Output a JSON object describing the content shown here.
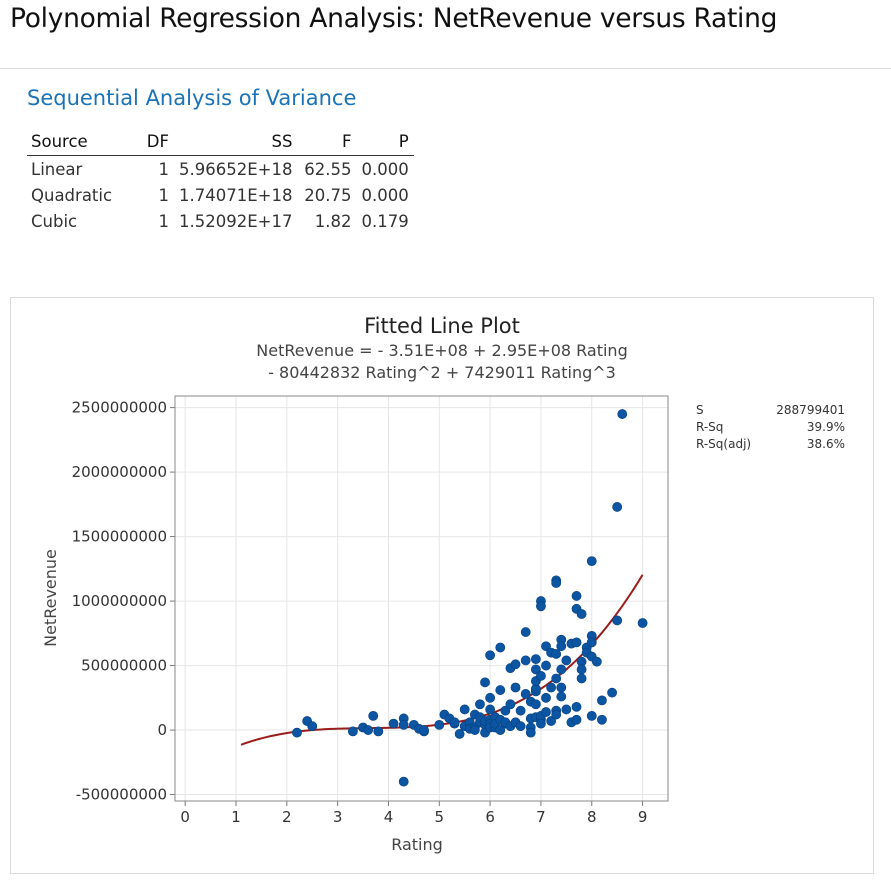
{
  "page": {
    "title": "Polynomial Regression Analysis: NetRevenue versus Rating"
  },
  "anova": {
    "section_title": "Sequential Analysis of Variance",
    "headers": [
      "Source",
      "DF",
      "SS",
      "F",
      "P"
    ],
    "rows": [
      {
        "source": "Linear",
        "df": "1",
        "ss": "5.96652E+18",
        "f": "62.55",
        "p": "0.000"
      },
      {
        "source": "Quadratic",
        "df": "1",
        "ss": "1.74071E+18",
        "f": "20.75",
        "p": "0.000"
      },
      {
        "source": "Cubic",
        "df": "1",
        "ss": "1.52092E+17",
        "f": "1.82",
        "p": "0.179"
      }
    ]
  },
  "stats": {
    "s_label": "S",
    "s_value": "288799401",
    "rsq_label": "R-Sq",
    "rsq_value": "39.9%",
    "rsqadj_label": "R-Sq(adj)",
    "rsqadj_value": "38.6%"
  },
  "colors": {
    "points": "#0b55a3",
    "fit_line": "#9b1c1c",
    "section_title": "#1a73b6"
  },
  "chart_data": {
    "type": "scatter",
    "title": "Fitted Line Plot",
    "subtitle_lines": [
      "NetRevenue = - 3.51E+08 + 2.95E+08 Rating",
      "- 80442832 Rating^2 + 7429011 Rating^3"
    ],
    "xlabel": "Rating",
    "ylabel": "NetRevenue",
    "xlim": [
      -0.2,
      9.5
    ],
    "ylim": [
      -550000000,
      2590000000
    ],
    "x_ticks": [
      0,
      1,
      2,
      3,
      4,
      5,
      6,
      7,
      8,
      9
    ],
    "y_ticks": [
      -500000000,
      0,
      500000000,
      1000000000,
      1500000000,
      2000000000,
      2500000000
    ],
    "y_tick_labels": [
      "-500000000",
      "0",
      "500000000",
      "1000000000",
      "1500000000",
      "2000000000",
      "2500000000"
    ],
    "grid": true,
    "fit": {
      "coefficients": [
        -351000000,
        295000000,
        -80442832,
        7429011
      ],
      "x_range": [
        1.1,
        9.0
      ]
    },
    "points": [
      [
        2.2,
        -20000000
      ],
      [
        2.4,
        70000000
      ],
      [
        2.5,
        30000000
      ],
      [
        3.3,
        -10000000
      ],
      [
        3.5,
        20000000
      ],
      [
        3.6,
        0
      ],
      [
        3.7,
        110000000
      ],
      [
        3.8,
        -10000000
      ],
      [
        4.1,
        50000000
      ],
      [
        4.3,
        90000000
      ],
      [
        4.3,
        40000000
      ],
      [
        4.3,
        -400000000
      ],
      [
        4.5,
        40000000
      ],
      [
        4.6,
        10000000
      ],
      [
        4.7,
        -10000000
      ],
      [
        4.7,
        0
      ],
      [
        5.0,
        40000000
      ],
      [
        5.1,
        120000000
      ],
      [
        5.2,
        90000000
      ],
      [
        5.3,
        50000000
      ],
      [
        5.3,
        60000000
      ],
      [
        5.4,
        -30000000
      ],
      [
        5.5,
        30000000
      ],
      [
        5.5,
        160000000
      ],
      [
        5.6,
        60000000
      ],
      [
        5.6,
        10000000
      ],
      [
        5.7,
        20000000
      ],
      [
        5.7,
        120000000
      ],
      [
        5.7,
        0
      ],
      [
        5.8,
        60000000
      ],
      [
        5.8,
        100000000
      ],
      [
        5.8,
        200000000
      ],
      [
        5.9,
        40000000
      ],
      [
        5.9,
        370000000
      ],
      [
        5.9,
        70000000
      ],
      [
        5.9,
        -20000000
      ],
      [
        6.0,
        580000000
      ],
      [
        6.0,
        250000000
      ],
      [
        6.0,
        160000000
      ],
      [
        6.0,
        80000000
      ],
      [
        6.0,
        50000000
      ],
      [
        6.0,
        20000000
      ],
      [
        6.1,
        100000000
      ],
      [
        6.1,
        20000000
      ],
      [
        6.1,
        50000000
      ],
      [
        6.2,
        640000000
      ],
      [
        6.2,
        310000000
      ],
      [
        6.2,
        0
      ],
      [
        6.2,
        80000000
      ],
      [
        6.3,
        150000000
      ],
      [
        6.3,
        50000000
      ],
      [
        6.3,
        60000000
      ],
      [
        6.4,
        200000000
      ],
      [
        6.4,
        30000000
      ],
      [
        6.4,
        480000000
      ],
      [
        6.5,
        510000000
      ],
      [
        6.5,
        330000000
      ],
      [
        6.5,
        60000000
      ],
      [
        6.6,
        150000000
      ],
      [
        6.6,
        30000000
      ],
      [
        6.7,
        760000000
      ],
      [
        6.7,
        540000000
      ],
      [
        6.7,
        280000000
      ],
      [
        6.8,
        90000000
      ],
      [
        6.8,
        20000000
      ],
      [
        6.8,
        220000000
      ],
      [
        6.8,
        -20000000
      ],
      [
        6.9,
        470000000
      ],
      [
        6.9,
        300000000
      ],
      [
        6.9,
        200000000
      ],
      [
        6.9,
        320000000
      ],
      [
        6.9,
        550000000
      ],
      [
        6.9,
        100000000
      ],
      [
        6.9,
        380000000
      ],
      [
        7.0,
        1000000000
      ],
      [
        7.0,
        960000000
      ],
      [
        7.0,
        420000000
      ],
      [
        7.0,
        80000000
      ],
      [
        7.0,
        110000000
      ],
      [
        7.0,
        50000000
      ],
      [
        7.1,
        500000000
      ],
      [
        7.1,
        250000000
      ],
      [
        7.1,
        650000000
      ],
      [
        7.1,
        140000000
      ],
      [
        7.2,
        600000000
      ],
      [
        7.2,
        330000000
      ],
      [
        7.2,
        70000000
      ],
      [
        7.3,
        1160000000
      ],
      [
        7.3,
        1140000000
      ],
      [
        7.3,
        590000000
      ],
      [
        7.3,
        400000000
      ],
      [
        7.3,
        150000000
      ],
      [
        7.3,
        120000000
      ],
      [
        7.4,
        700000000
      ],
      [
        7.4,
        650000000
      ],
      [
        7.4,
        470000000
      ],
      [
        7.4,
        330000000
      ],
      [
        7.4,
        260000000
      ],
      [
        7.5,
        540000000
      ],
      [
        7.5,
        160000000
      ],
      [
        7.6,
        670000000
      ],
      [
        7.6,
        60000000
      ],
      [
        7.7,
        1040000000
      ],
      [
        7.7,
        940000000
      ],
      [
        7.7,
        680000000
      ],
      [
        7.7,
        180000000
      ],
      [
        7.7,
        80000000
      ],
      [
        7.8,
        900000000
      ],
      [
        7.8,
        530000000
      ],
      [
        7.8,
        470000000
      ],
      [
        7.8,
        400000000
      ],
      [
        7.9,
        640000000
      ],
      [
        7.9,
        600000000
      ],
      [
        8.0,
        1310000000
      ],
      [
        8.0,
        730000000
      ],
      [
        8.0,
        680000000
      ],
      [
        8.0,
        570000000
      ],
      [
        8.0,
        110000000
      ],
      [
        8.1,
        530000000
      ],
      [
        8.2,
        230000000
      ],
      [
        8.2,
        80000000
      ],
      [
        8.4,
        290000000
      ],
      [
        8.5,
        850000000
      ],
      [
        8.5,
        1730000000
      ],
      [
        8.6,
        2450000000
      ],
      [
        9.0,
        830000000
      ]
    ]
  }
}
